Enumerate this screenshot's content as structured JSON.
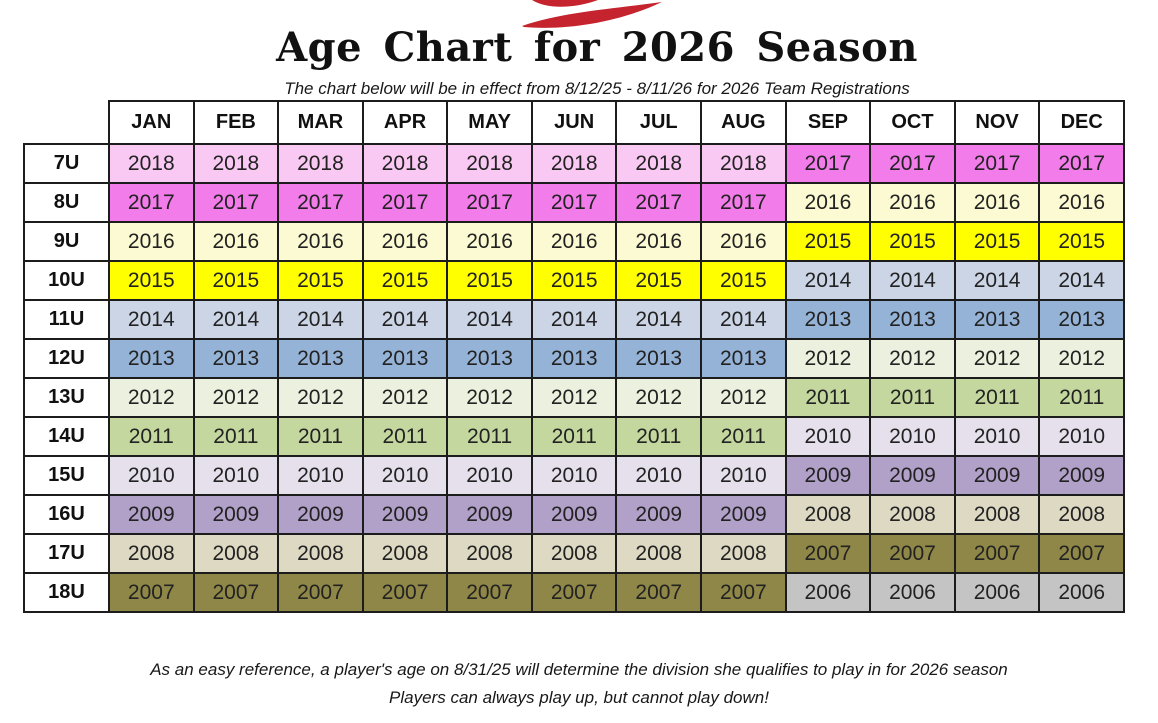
{
  "page": {
    "title": "Age Chart for 2026 Season",
    "subtitle": "The chart below will be in effect from 8/12/25 - 8/11/26 for 2026 Team Registrations",
    "footer_line1": "As an easy reference, a player's age on 8/31/25 will determine the division she qualifies to play in for 2026 season",
    "footer_line2": "Players can always play up, but cannot play down!"
  },
  "logo": {
    "icon": "red-flag-swoosh",
    "color": "#C5242E"
  },
  "chart_data": {
    "type": "table",
    "title": "Age Chart for 2026 Season",
    "columns": [
      "JAN",
      "FEB",
      "MAR",
      "APR",
      "MAY",
      "JUN",
      "JUL",
      "AUG",
      "SEP",
      "OCT",
      "NOV",
      "DEC"
    ],
    "rows": [
      {
        "label": "7U",
        "values": [
          "2018",
          "2018",
          "2018",
          "2018",
          "2018",
          "2018",
          "2018",
          "2018",
          "2017",
          "2017",
          "2017",
          "2017"
        ]
      },
      {
        "label": "8U",
        "values": [
          "2017",
          "2017",
          "2017",
          "2017",
          "2017",
          "2017",
          "2017",
          "2017",
          "2016",
          "2016",
          "2016",
          "2016"
        ]
      },
      {
        "label": "9U",
        "values": [
          "2016",
          "2016",
          "2016",
          "2016",
          "2016",
          "2016",
          "2016",
          "2016",
          "2015",
          "2015",
          "2015",
          "2015"
        ]
      },
      {
        "label": "10U",
        "values": [
          "2015",
          "2015",
          "2015",
          "2015",
          "2015",
          "2015",
          "2015",
          "2015",
          "2014",
          "2014",
          "2014",
          "2014"
        ]
      },
      {
        "label": "11U",
        "values": [
          "2014",
          "2014",
          "2014",
          "2014",
          "2014",
          "2014",
          "2014",
          "2014",
          "2013",
          "2013",
          "2013",
          "2013"
        ]
      },
      {
        "label": "12U",
        "values": [
          "2013",
          "2013",
          "2013",
          "2013",
          "2013",
          "2013",
          "2013",
          "2013",
          "2012",
          "2012",
          "2012",
          "2012"
        ]
      },
      {
        "label": "13U",
        "values": [
          "2012",
          "2012",
          "2012",
          "2012",
          "2012",
          "2012",
          "2012",
          "2012",
          "2011",
          "2011",
          "2011",
          "2011"
        ]
      },
      {
        "label": "14U",
        "values": [
          "2011",
          "2011",
          "2011",
          "2011",
          "2011",
          "2011",
          "2011",
          "2011",
          "2010",
          "2010",
          "2010",
          "2010"
        ]
      },
      {
        "label": "15U",
        "values": [
          "2010",
          "2010",
          "2010",
          "2010",
          "2010",
          "2010",
          "2010",
          "2010",
          "2009",
          "2009",
          "2009",
          "2009"
        ]
      },
      {
        "label": "16U",
        "values": [
          "2009",
          "2009",
          "2009",
          "2009",
          "2009",
          "2009",
          "2009",
          "2009",
          "2008",
          "2008",
          "2008",
          "2008"
        ]
      },
      {
        "label": "17U",
        "values": [
          "2008",
          "2008",
          "2008",
          "2008",
          "2008",
          "2008",
          "2008",
          "2008",
          "2007",
          "2007",
          "2007",
          "2007"
        ]
      },
      {
        "label": "18U",
        "values": [
          "2007",
          "2007",
          "2007",
          "2007",
          "2007",
          "2007",
          "2007",
          "2007",
          "2006",
          "2006",
          "2006",
          "2006"
        ]
      }
    ],
    "year_colors": {
      "2018": "#F9C9F3",
      "2017": "#F17CEA",
      "2016": "#FBFAD2",
      "2015": "#FFFF00",
      "2014": "#CCD5E6",
      "2013": "#95B3D7",
      "2012": "#EBF1DE",
      "2011": "#C4D79E",
      "2010": "#E5E0EC",
      "2009": "#B1A0C8",
      "2008": "#DDD9C3",
      "2007": "#8F8747",
      "2006": "#C4C4C4"
    },
    "legend_position": "none",
    "grid": true
  }
}
